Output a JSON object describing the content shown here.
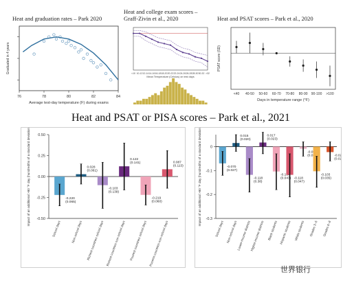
{
  "page": {
    "main_title": "Heat and PSAT or PISA scores – Park et al., 2021",
    "watermark": "世界银行"
  },
  "chart_data": [
    {
      "id": "graduation",
      "type": "scatter",
      "title": "Heat and graduation rates – Park 2020",
      "xlabel": "Average test-day temperature (F) during exams",
      "ylabel": "Graduated in 4 years",
      "xlim": [
        76,
        84
      ],
      "ylim": [
        0.55,
        0.85
      ],
      "x_ticks": [
        76,
        78,
        80,
        82,
        84
      ],
      "y_ticks": [
        "",
        "",
        "",
        ""
      ],
      "x": [
        77.2,
        78.0,
        78.4,
        78.8,
        79.0,
        79.3,
        79.5,
        79.8,
        80.0,
        80.2,
        80.5,
        80.8,
        81.0,
        81.2,
        81.5,
        81.8,
        82.0,
        82.3,
        82.6,
        83.0,
        83.4
      ],
      "y": [
        0.72,
        0.78,
        0.8,
        0.81,
        0.79,
        0.8,
        0.78,
        0.77,
        0.78,
        0.76,
        0.75,
        0.73,
        0.74,
        0.7,
        0.72,
        0.69,
        0.68,
        0.66,
        0.67,
        0.63,
        0.6
      ],
      "fit": {
        "type": "quadratic",
        "x": [
          76.3,
          77,
          78,
          79,
          80,
          81,
          82,
          83,
          84
        ],
        "y": [
          0.73,
          0.76,
          0.79,
          0.8,
          0.79,
          0.765,
          0.725,
          0.67,
          0.6
        ]
      },
      "colors": {
        "points": "#7fa9c9",
        "fit": "#2e6f9e"
      }
    },
    {
      "id": "exam",
      "type": "line",
      "title": "Heat and college exam scores – Graff-Zivin et al., 2020",
      "xlabel": "Mean Temperature (Celsius) on test days",
      "ylabel": "",
      "categories": [
        "<10",
        "10-12",
        "12-14",
        "14-16",
        "16-18",
        "18-20",
        "20-22",
        "22-24",
        "24-26",
        "26-28",
        "28-30",
        "30-32",
        ">32"
      ],
      "series": [
        {
          "name": "",
          "values": [
            0.0,
            0.0,
            -0.02,
            -0.04,
            -0.06,
            -0.07,
            -0.08,
            -0.11,
            -0.13,
            -0.14,
            -0.16,
            -0.17,
            -0.19
          ]
        }
      ],
      "ci_low": [
        -0.02,
        -0.02,
        -0.05,
        -0.07,
        -0.09,
        -0.1,
        -0.11,
        -0.14,
        -0.16,
        -0.17,
        -0.19,
        -0.2,
        -0.23
      ],
      "ci_high": [
        0.02,
        0.02,
        0.01,
        -0.01,
        -0.03,
        -0.04,
        -0.05,
        -0.08,
        -0.1,
        -0.11,
        -0.13,
        -0.14,
        -0.15
      ],
      "histogram": [
        1,
        2,
        2,
        3,
        3,
        4,
        5,
        6,
        5,
        7,
        9,
        10,
        12,
        14,
        12,
        11,
        9,
        8,
        6,
        5,
        4,
        3,
        2,
        2,
        1
      ],
      "colors": {
        "line": "#5a3c8e",
        "ci": "#9b88bd",
        "hist": "#c9b24a"
      }
    },
    {
      "id": "psat",
      "type": "scatter",
      "title": "Heat and PSAT scores – Park et al., 2020",
      "xlabel": "Days in temperature range (°F)",
      "ylabel": "PSAT score (SD)",
      "categories": [
        "<40",
        "40-50",
        "50-60",
        "60-70",
        "70-80",
        "80-90",
        "90-100",
        ">100"
      ],
      "values": [
        0.006,
        0.01,
        0.004,
        0.0,
        -0.008,
        -0.012,
        -0.016,
        -0.022
      ],
      "ci_low": [
        0.0,
        0.0,
        -0.002,
        0.0,
        -0.013,
        -0.018,
        -0.024,
        -0.032
      ],
      "ci_high": [
        0.012,
        0.02,
        0.01,
        0.0,
        -0.003,
        -0.006,
        -0.008,
        -0.012
      ],
      "ylim": [
        -0.035,
        0.025
      ],
      "colors": {
        "point": "#222222"
      }
    },
    {
      "id": "pisa",
      "type": "bar",
      "ylabel": "Impact of an additional >80 °F day (hundredths of a standard deviation)",
      "ylim": [
        -0.5,
        0.5
      ],
      "y_ticks": [
        "-0.50",
        "-0.25",
        "0.00",
        "0.25",
        "0.50"
      ],
      "categories": [
        "School days",
        "Non-school days",
        "Richest countries school days",
        "Richest countries non-school days",
        "Poorest countries school days",
        "Poorest countries non-school days"
      ],
      "values": [
        -0.22,
        0.028,
        -0.103,
        0.122,
        -0.219,
        0.087
      ],
      "labels": [
        "-0.220\n(0.065)",
        "0.028\n(0.061)",
        "-0.103\n(0.139)",
        "0.122\n(0.141)",
        "-0.219\n(0.060)",
        "0.087\n(0.113)"
      ],
      "ci_low": [
        -0.35,
        -0.09,
        -0.38,
        -0.16,
        -0.34,
        -0.14
      ],
      "ci_high": [
        -0.09,
        0.15,
        0.17,
        0.4,
        -0.1,
        0.31
      ],
      "colors": [
        "#5aa6cf",
        "#1f5d82",
        "#a98bc8",
        "#6a2a7e",
        "#f0a4b8",
        "#d8586e"
      ]
    },
    {
      "id": "psat_groups",
      "type": "bar",
      "ylabel": "Impact of an additional >80 °F day (hundredths of a standard deviation)",
      "ylim": [
        -0.3,
        0.05
      ],
      "y_ticks": [
        "0",
        "-0.1",
        "-0.2",
        "-0.3"
      ],
      "categories": [
        "School days",
        "Non-school days",
        "Lower-income districts",
        "Higher-income districts",
        "Black students",
        "Hispanic students",
        "White students",
        "Grades 3–5",
        "Grades 6–8"
      ],
      "values": [
        -0.07,
        0.015,
        -0.118,
        0.017,
        -0.104,
        -0.118,
        -0.009,
        -0.103,
        -0.023
      ],
      "labels": [
        "-0.070\n(0.027)",
        "0.015\n(0.020)",
        "-0.118\n(0.38)",
        "0.017\n(0.023)",
        "-0.104\n(0.043)",
        "-0.118\n(0.047)",
        "-0.009\n(0.017)",
        "-0.103\n(0.035)",
        "-0.023\n(0.023)"
      ],
      "ci_low": [
        -0.12,
        -0.02,
        -0.19,
        -0.03,
        -0.18,
        -0.21,
        -0.04,
        -0.17,
        -0.06
      ],
      "ci_high": [
        -0.02,
        0.05,
        -0.05,
        0.06,
        -0.03,
        -0.03,
        0.02,
        -0.04,
        0.02
      ],
      "colors": [
        "#5aa6cf",
        "#1f5d82",
        "#a98bc8",
        "#6a2a7e",
        "#f0a4b8",
        "#d8586e",
        "#e8b4c4",
        "#f2b24a",
        "#d9542a"
      ]
    }
  ]
}
